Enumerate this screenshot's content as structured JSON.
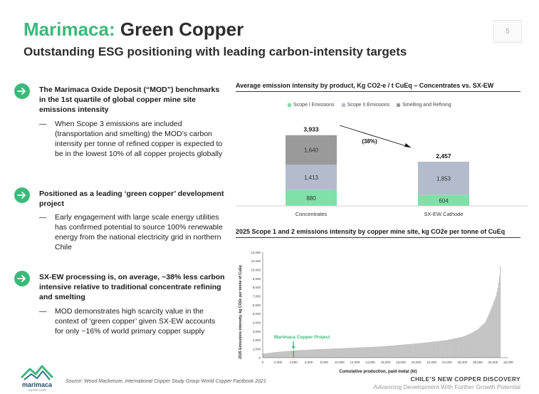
{
  "header": {
    "title_brand": "Marimaca:",
    "title_rest": "Green Copper",
    "subtitle": "Outstanding ESG positioning with leading carbon-intensity targets",
    "page_number": "5"
  },
  "bullets": [
    {
      "heading": "The Marimaca Oxide Deposit (“MOD”) benchmarks in the 1st quartile of global copper mine site emissions intensity",
      "sub": "When Scope 3 emissions are included (transportation and smelting) the MOD’s carbon intensity per tonne of refined copper is expected to be in the lowest 10% of all copper projects globally"
    },
    {
      "heading": "Positioned as a leading ‘green copper’ development project",
      "sub": "Early engagement with large scale energy utilities has confirmed potential to source 100% renewable energy from the national electricity grid in northern Chile"
    },
    {
      "heading": "SX-EW processing is, on average, ~38% less carbon intensive relative to traditional concentrate refining and smelting",
      "sub": "MOD demonstrates high scarcity value in the context of ‘green copper’ given SX-EW accounts for only ~16% of world primary copper supply"
    }
  ],
  "dash": "—",
  "chart1_title": "Average emission intensity by product, Kg CO2-e / t CuEq – Concentrates vs. SX-EW",
  "chart2_title": "2025 Scope 1 and 2 emissions intensity by copper mine site, kg CO2e per tonne of CuEq",
  "source": "Source: Wood Mackenzie, International Copper Study Group World Copper Factbook 2021",
  "footer": {
    "line1": "CHILE’S NEW COPPER DISCOVERY",
    "line2": "Advancing Development With Further Growth Potential"
  },
  "logo": {
    "name": "marimaca",
    "tagline": "COPPER CORP"
  },
  "colors": {
    "brand_green": "#3cb97a",
    "scope1": "#7fe0a8",
    "scope2": "#b3bccc",
    "smelting": "#9a9a9a",
    "cost_bar": "#c6c6c6"
  },
  "chart_data": [
    {
      "type": "bar",
      "stacked": true,
      "title": "Average emission intensity by product, Kg CO2-e / t CuEq – Concentrates vs. SX-EW",
      "categories": [
        "Concentrates",
        "SX-EW Cathode"
      ],
      "series": [
        {
          "name": "Scope I Emissions",
          "values": [
            880,
            604
          ],
          "labels": [
            "880",
            "604"
          ]
        },
        {
          "name": "Scope II Emissions",
          "values": [
            1413,
            1853
          ],
          "labels": [
            "1,413",
            "1,853"
          ]
        },
        {
          "name": "Smelting and Refining",
          "values": [
            1640,
            0
          ],
          "labels": [
            "1,640",
            ""
          ]
        }
      ],
      "totals": [
        3933,
        2457
      ],
      "total_labels": [
        "3,933",
        "2,457"
      ],
      "annotation": "(38%)",
      "legend_position": "top",
      "ylim": [
        0,
        4200
      ]
    },
    {
      "type": "bar",
      "title": "2025 Scope 1 and 2 emissions intensity by copper mine site, kg CO2e per tonne of CuEq",
      "xlabel": "Cumulative production, paid metal (kt)",
      "ylabel": "2025 Emissions intensity, kg CO2e per tonne of CuEq",
      "xlim": [
        0,
        32000
      ],
      "ylim": [
        0,
        12000
      ],
      "x_ticks": [
        "0",
        "2,000",
        "4,000",
        "6,000",
        "8,000",
        "10,000",
        "12,000",
        "14,000",
        "16,000",
        "18,000",
        "20,000",
        "22,000",
        "24,000",
        "26,000",
        "28,000",
        "30,000",
        "32,000"
      ],
      "y_ticks": [
        "0",
        "1,000",
        "2,000",
        "3,000",
        "4,000",
        "5,000",
        "6,000",
        "7,000",
        "8,000",
        "9,000",
        "10,000",
        "11,000",
        "12,000"
      ],
      "curve_points": [
        [
          0,
          450
        ],
        [
          2000,
          650
        ],
        [
          4000,
          800
        ],
        [
          6000,
          900
        ],
        [
          8000,
          980
        ],
        [
          10000,
          1050
        ],
        [
          12000,
          1130
        ],
        [
          14000,
          1200
        ],
        [
          16000,
          1300
        ],
        [
          18000,
          1450
        ],
        [
          20000,
          1600
        ],
        [
          22000,
          1780
        ],
        [
          24000,
          2000
        ],
        [
          26000,
          2350
        ],
        [
          27000,
          2700
        ],
        [
          28000,
          3200
        ],
        [
          29000,
          4000
        ],
        [
          29800,
          5600
        ],
        [
          30400,
          7000
        ],
        [
          30700,
          8200
        ],
        [
          30900,
          9700
        ],
        [
          31000,
          11000
        ]
      ],
      "highlight": {
        "label": "Marimaca Copper Project",
        "x": 4000,
        "y": 800
      }
    }
  ]
}
